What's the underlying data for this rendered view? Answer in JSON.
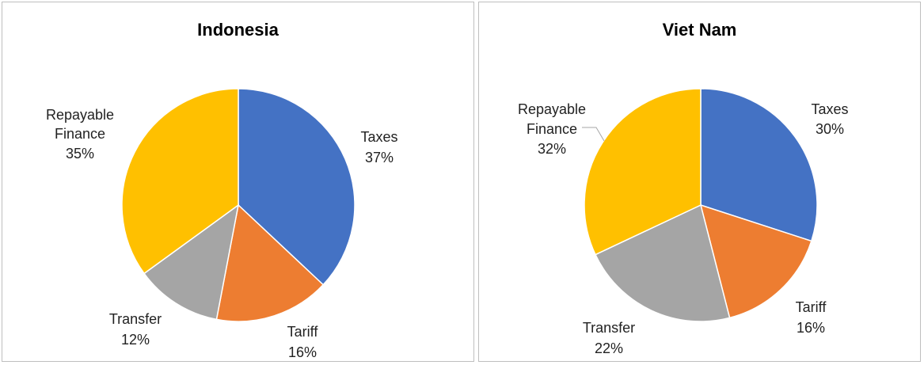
{
  "chart_data": [
    {
      "type": "pie",
      "title": "Indonesia",
      "slices": [
        {
          "label": "Taxes",
          "value": 37,
          "pct_text": "37%",
          "color": "#4472C4"
        },
        {
          "label": "Tariff",
          "value": 16,
          "pct_text": "16%",
          "color": "#ED7D31"
        },
        {
          "label": "Transfer",
          "value": 12,
          "pct_text": "12%",
          "color": "#A5A5A5"
        },
        {
          "label": "Repayable Finance",
          "value": 35,
          "pct_text": "35%",
          "color": "#FFC000"
        }
      ]
    },
    {
      "type": "pie",
      "title": "Viet Nam",
      "slices": [
        {
          "label": "Taxes",
          "value": 30,
          "pct_text": "30%",
          "color": "#4472C4"
        },
        {
          "label": "Tariff",
          "value": 16,
          "pct_text": "16%",
          "color": "#ED7D31"
        },
        {
          "label": "Transfer",
          "value": 22,
          "pct_text": "22%",
          "color": "#A5A5A5"
        },
        {
          "label": "Repayable Finance",
          "value": 32,
          "pct_text": "32%",
          "color": "#FFC000"
        }
      ]
    }
  ]
}
